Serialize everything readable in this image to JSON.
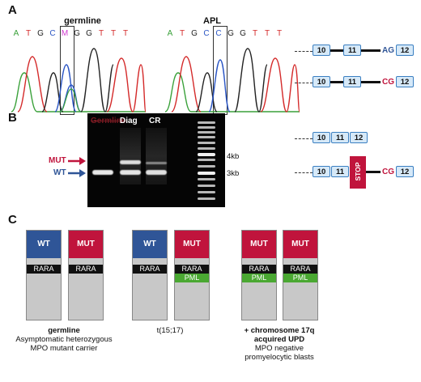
{
  "panel_a": {
    "letter": "A",
    "trace_left": {
      "title": "germline",
      "bases": [
        "A",
        "T",
        "G",
        "C",
        "M",
        "G",
        "G",
        "T",
        "T",
        "T"
      ]
    },
    "trace_right": {
      "title": "APL",
      "bases": [
        "A",
        "T",
        "G",
        "C",
        "C",
        "G",
        "G",
        "T",
        "T",
        "T"
      ]
    },
    "base_colors": {
      "A": "#3aa13a",
      "T": "#d42a2a",
      "G": "#222222",
      "C": "#2a55c4",
      "M": "#d03bd0"
    },
    "diagram_1": {
      "exon_a": "10",
      "exon_b": "11",
      "splice": "AG",
      "exon_c": "12"
    },
    "diagram_2": {
      "exon_a": "10",
      "exon_b": "11",
      "splice": "CG",
      "exon_c": "12"
    }
  },
  "panel_b": {
    "letter": "B",
    "gel_labels": [
      "Diag",
      "CR"
    ],
    "gel_label_struck": "Germline",
    "mut_label": "MUT",
    "wt_label": "WT",
    "size_4kb": "4kb",
    "size_3kb": "3kb",
    "diagram_3": {
      "exon_a": "10",
      "exon_b": "11",
      "exon_c": "12"
    },
    "diagram_4": {
      "exon_a": "10",
      "exon_b": "11",
      "stop": "STOP",
      "splice": "CG",
      "exon_c": "12"
    }
  },
  "panel_c": {
    "letter": "C",
    "colors": {
      "wt": "#2f5597",
      "mut": "#c0143c",
      "pml": "#4aa832"
    },
    "chromosomes": [
      {
        "top": "WT",
        "rara": "RARA",
        "pml": ""
      },
      {
        "top": "MUT",
        "rara": "RARA",
        "pml": ""
      },
      {
        "top": "WT",
        "rara": "RARA",
        "pml": ""
      },
      {
        "top": "MUT",
        "rara": "RARA",
        "pml": "PML"
      },
      {
        "top": "MUT",
        "rara": "RARA",
        "pml": "PML"
      },
      {
        "top": "MUT",
        "rara": "RARA",
        "pml": "PML"
      }
    ],
    "caption_1": {
      "title": "germline",
      "line2": "Asymptomatic heterozygous",
      "line3": "MPO mutant carrier"
    },
    "caption_2": {
      "title": "t(15;17)"
    },
    "caption_3": {
      "title": "+ chromosome 17q",
      "line2": "acquired UPD",
      "line3": "MPO negative",
      "line4": "promyelocytic blasts"
    }
  }
}
